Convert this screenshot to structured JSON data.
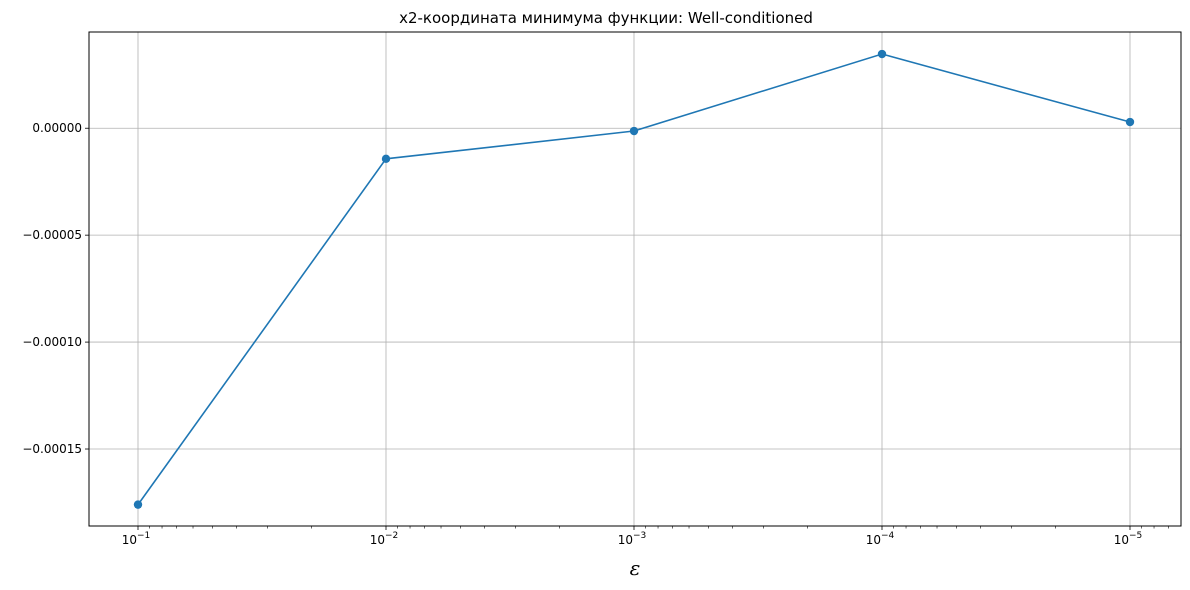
{
  "chart_data": {
    "type": "line",
    "title": "x2-координата минимума функции: Well-conditioned",
    "xlabel": "ε",
    "ylabel": "",
    "xscale": "log",
    "x_inverted": true,
    "grid": true,
    "color": "#1f77b4",
    "x": [
      0.1,
      0.01,
      0.001,
      0.0001,
      1e-05
    ],
    "x_tick_labels": [
      {
        "base": "10",
        "exp": "−1"
      },
      {
        "base": "10",
        "exp": "−2"
      },
      {
        "base": "10",
        "exp": "−3"
      },
      {
        "base": "10",
        "exp": "−4"
      },
      {
        "base": "10",
        "exp": "−5"
      }
    ],
    "y": [
      -0.000176,
      -1.43e-05,
      -1.3e-06,
      3.47e-05,
      2.9e-06
    ],
    "y_ticks": [
      0.0,
      -5e-05,
      -0.0001,
      -0.00015
    ],
    "y_tick_labels": [
      "0.00000",
      "−0.00005",
      "−0.00010",
      "−0.00015"
    ],
    "ylim": [
      -0.000186,
      4.5e-05
    ]
  }
}
